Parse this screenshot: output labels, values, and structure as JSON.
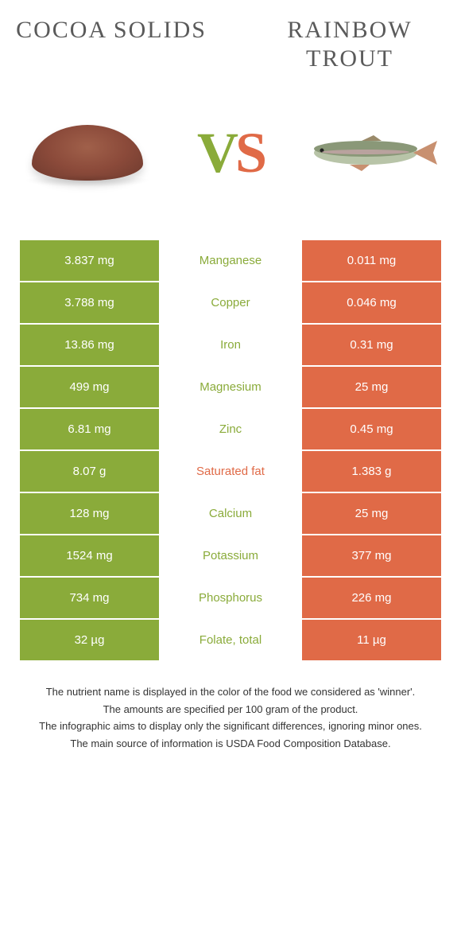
{
  "header": {
    "left_title": "COCOA SOLIDS",
    "right_title": "RAINBOW TROUT"
  },
  "vs": {
    "v": "V",
    "s": "S"
  },
  "colors": {
    "left": "#8aab3a",
    "right": "#e06a47",
    "text": "#5a5a5a"
  },
  "nutrients": [
    {
      "name": "Manganese",
      "left": "3.837 mg",
      "right": "0.011 mg",
      "winner": "left"
    },
    {
      "name": "Copper",
      "left": "3.788 mg",
      "right": "0.046 mg",
      "winner": "left"
    },
    {
      "name": "Iron",
      "left": "13.86 mg",
      "right": "0.31 mg",
      "winner": "left"
    },
    {
      "name": "Magnesium",
      "left": "499 mg",
      "right": "25 mg",
      "winner": "left"
    },
    {
      "name": "Zinc",
      "left": "6.81 mg",
      "right": "0.45 mg",
      "winner": "left"
    },
    {
      "name": "Saturated fat",
      "left": "8.07 g",
      "right": "1.383 g",
      "winner": "right"
    },
    {
      "name": "Calcium",
      "left": "128 mg",
      "right": "25 mg",
      "winner": "left"
    },
    {
      "name": "Potassium",
      "left": "1524 mg",
      "right": "377 mg",
      "winner": "left"
    },
    {
      "name": "Phosphorus",
      "left": "734 mg",
      "right": "226 mg",
      "winner": "left"
    },
    {
      "name": "Folate, total",
      "left": "32 µg",
      "right": "11 µg",
      "winner": "left"
    }
  ],
  "footer": [
    "The nutrient name is displayed in the color of the food we considered as 'winner'.",
    "The amounts are specified per 100 gram of the product.",
    "The infographic aims to display only the significant differences, ignoring minor ones.",
    "The main source of information is USDA Food Composition Database."
  ]
}
